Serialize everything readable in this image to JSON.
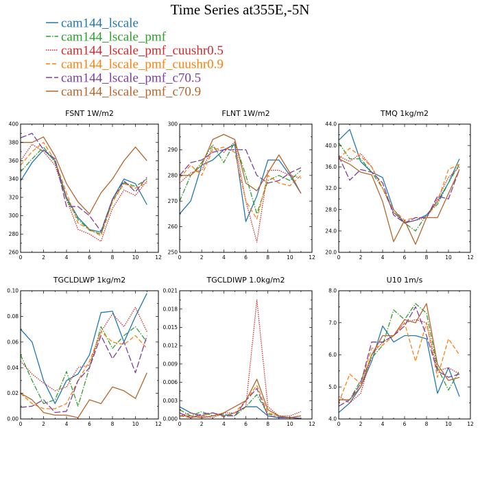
{
  "figure_title": "Time Series at355E,-5N",
  "legend": [
    {
      "label": "cam144_lscale",
      "color": "#1f77b4",
      "dash": "solid"
    },
    {
      "label": "cam144_lscale_pmf",
      "color": "#2ca02c",
      "dash": "dashdot"
    },
    {
      "label": "cam144_lscale_pmf_cuushr0.5",
      "color": "#d62728",
      "dash": "dot"
    },
    {
      "label": "cam144_lscale_pmf_cuushr0.9",
      "color": "#ff7f0e",
      "dash": "dash"
    },
    {
      "label": "cam144_lscale_pmf_c70.5",
      "color": "#7b3f9e",
      "dash": "longdash"
    },
    {
      "label": "cam144_lscale_pmf_c70.9",
      "color": "#b5652b",
      "dash": "solid"
    }
  ],
  "chart_data": [
    {
      "type": "line",
      "title": "FSNT   1W/m2",
      "x": [
        0,
        1,
        2,
        3,
        4,
        5,
        6,
        7,
        8,
        9,
        10,
        11
      ],
      "xlim": [
        0,
        12
      ],
      "xticks": [
        0,
        2,
        4,
        6,
        8,
        10,
        12
      ],
      "ylim": [
        260,
        400
      ],
      "yticks": [
        260,
        280,
        300,
        320,
        340,
        360,
        380,
        400
      ],
      "ytick_labels": [
        "260",
        "280",
        "300",
        "320",
        "340",
        "360",
        "380",
        "400"
      ],
      "series": [
        {
          "name": "cam144_lscale",
          "values": [
            338,
            358,
            372,
            360,
            320,
            298,
            285,
            282,
            318,
            340,
            335,
            312
          ]
        },
        {
          "name": "cam144_lscale_pmf",
          "values": [
            348,
            362,
            375,
            358,
            318,
            296,
            284,
            280,
            316,
            336,
            332,
            340
          ]
        },
        {
          "name": "cam144_lscale_pmf_cuushr0.5",
          "values": [
            360,
            378,
            370,
            355,
            318,
            285,
            280,
            272,
            308,
            328,
            322,
            338
          ]
        },
        {
          "name": "cam144_lscale_pmf_cuushr0.9",
          "values": [
            355,
            370,
            380,
            360,
            325,
            292,
            285,
            278,
            315,
            335,
            330,
            336
          ]
        },
        {
          "name": "cam144_lscale_pmf_c70.5",
          "values": [
            385,
            390,
            372,
            362,
            310,
            310,
            300,
            283,
            318,
            338,
            326,
            342
          ]
        },
        {
          "name": "cam144_lscale_pmf_c70.9",
          "values": [
            380,
            380,
            386,
            365,
            335,
            315,
            302,
            325,
            340,
            360,
            375,
            360
          ]
        }
      ]
    },
    {
      "type": "line",
      "title": "FLNT   1W/m2",
      "x": [
        0,
        1,
        2,
        3,
        4,
        5,
        6,
        7,
        8,
        9,
        10,
        11
      ],
      "xlim": [
        0,
        12
      ],
      "xticks": [
        0,
        2,
        4,
        6,
        8,
        10,
        12
      ],
      "ylim": [
        250,
        300
      ],
      "yticks": [
        250,
        260,
        270,
        280,
        290,
        300
      ],
      "ytick_labels": [
        "250",
        "260",
        "270",
        "280",
        "290",
        "300"
      ],
      "series": [
        {
          "name": "cam144_lscale",
          "values": [
            265,
            270,
            284,
            286,
            290,
            292,
            262,
            272,
            286,
            286,
            280,
            273
          ]
        },
        {
          "name": "cam144_lscale_pmf",
          "values": [
            270,
            280,
            285,
            292,
            285,
            293,
            280,
            265,
            278,
            280,
            278,
            282
          ]
        },
        {
          "name": "cam144_lscale_pmf_cuushr0.5",
          "values": [
            277,
            281,
            282,
            291,
            289,
            293,
            270,
            254,
            282,
            282,
            280,
            279
          ]
        },
        {
          "name": "cam144_lscale_pmf_cuushr0.9",
          "values": [
            279,
            284,
            280,
            290,
            291,
            289,
            270,
            263,
            280,
            277,
            276,
            280
          ]
        },
        {
          "name": "cam144_lscale_pmf_c70.5",
          "values": [
            280,
            285,
            286,
            289,
            290,
            290,
            290,
            280,
            277,
            278,
            281,
            283
          ]
        },
        {
          "name": "cam144_lscale_pmf_c70.9",
          "values": [
            280,
            280,
            284,
            294,
            296,
            294,
            277,
            274,
            281,
            288,
            281,
            273
          ]
        }
      ]
    },
    {
      "type": "line",
      "title": "TMQ   1kg/m2",
      "x": [
        0,
        1,
        2,
        3,
        4,
        5,
        6,
        7,
        8,
        9,
        10,
        11
      ],
      "xlim": [
        0,
        12
      ],
      "xticks": [
        0,
        2,
        4,
        6,
        8,
        10,
        12
      ],
      "ylim": [
        20,
        44
      ],
      "yticks": [
        20,
        24,
        28,
        32,
        36,
        40,
        44
      ],
      "ytick_labels": [
        "20.0",
        "24.0",
        "28.0",
        "32.0",
        "36.0",
        "40.0",
        "44.0"
      ],
      "series": [
        {
          "name": "cam144_lscale",
          "values": [
            41,
            43,
            37,
            35,
            34,
            28,
            25.5,
            26,
            27,
            29.5,
            33,
            37.5
          ]
        },
        {
          "name": "cam144_lscale_pmf",
          "values": [
            40.5,
            37.5,
            37.5,
            35,
            32,
            27.5,
            25.5,
            24,
            27,
            29,
            33,
            36.5
          ]
        },
        {
          "name": "cam144_lscale_pmf_cuushr0.5",
          "values": [
            38,
            37,
            38.5,
            36,
            32,
            27.5,
            25.5,
            26,
            26.5,
            30,
            34,
            36
          ]
        },
        {
          "name": "cam144_lscale_pmf_cuushr0.9",
          "values": [
            37.5,
            39.5,
            38,
            36,
            32,
            28,
            26,
            26.5,
            26.5,
            29.5,
            35.5,
            36.5
          ]
        },
        {
          "name": "cam144_lscale_pmf_c70.5",
          "values": [
            38,
            33.5,
            35.5,
            35,
            33,
            27,
            25.5,
            26.5,
            26.5,
            30.5,
            30,
            35.5
          ]
        },
        {
          "name": "cam144_lscale_pmf_c70.9",
          "values": [
            37.5,
            36.5,
            35,
            34.5,
            29.5,
            22,
            26,
            21.5,
            26.5,
            26.5,
            31,
            35.5
          ]
        }
      ]
    },
    {
      "type": "line",
      "title": "TGCLDLWP   1kg/m2",
      "x": [
        0,
        1,
        2,
        3,
        4,
        5,
        6,
        7,
        8,
        9,
        10,
        11
      ],
      "xlim": [
        0,
        12
      ],
      "xticks": [
        0,
        2,
        4,
        6,
        8,
        10,
        12
      ],
      "ylim": [
        0,
        0.1
      ],
      "yticks": [
        0,
        0.02,
        0.04,
        0.06,
        0.08,
        0.1
      ],
      "ytick_labels": [
        "0.00",
        "0.02",
        "0.04",
        "0.06",
        "0.08",
        "0.10"
      ],
      "series": [
        {
          "name": "cam144_lscale",
          "values": [
            0.07,
            0.06,
            0.03,
            0.012,
            0.03,
            0.035,
            0.05,
            0.083,
            0.084,
            0.06,
            0.08,
            0.098
          ]
        },
        {
          "name": "cam144_lscale_pmf",
          "values": [
            0.05,
            0.03,
            0.012,
            0.015,
            0.037,
            0.01,
            0.04,
            0.072,
            0.055,
            0.065,
            0.072,
            0.06
          ]
        },
        {
          "name": "cam144_lscale_pmf_cuushr0.5",
          "values": [
            0.045,
            0.035,
            0.028,
            0.022,
            0.025,
            0.04,
            0.042,
            0.068,
            0.082,
            0.072,
            0.087,
            0.068
          ]
        },
        {
          "name": "cam144_lscale_pmf_cuushr0.9",
          "values": [
            0.02,
            0.012,
            0.008,
            0.008,
            0.012,
            0.03,
            0.045,
            0.068,
            0.06,
            0.058,
            0.065,
            0.055
          ]
        },
        {
          "name": "cam144_lscale_pmf_c70.5",
          "values": [
            0.009,
            0.01,
            0.015,
            0.005,
            0.006,
            0.03,
            0.04,
            0.065,
            0.047,
            0.06,
            0.036,
            0.065
          ]
        },
        {
          "name": "cam144_lscale_pmf_c70.9",
          "values": [
            0.02,
            0.015,
            0.005,
            0.003,
            0.003,
            0.001,
            0.015,
            0.012,
            0.025,
            0.022,
            0.016,
            0.036
          ]
        }
      ]
    },
    {
      "type": "line",
      "title": "TGCLDIWP   1.0kg/m2",
      "x": [
        0,
        1,
        2,
        3,
        4,
        5,
        6,
        7,
        8,
        9,
        10,
        11
      ],
      "xlim": [
        0,
        12
      ],
      "xticks": [
        0,
        2,
        4,
        6,
        8,
        10,
        12
      ],
      "ylim": [
        0,
        0.021
      ],
      "yticks": [
        0,
        0.003,
        0.006,
        0.009,
        0.012,
        0.015,
        0.018,
        0.021
      ],
      "ytick_labels": [
        "0.000",
        "0.003",
        "0.006",
        "0.009",
        "0.012",
        "0.015",
        "0.018",
        "0.021"
      ],
      "series": [
        {
          "name": "cam144_lscale",
          "values": [
            0.002,
            0.001,
            0.0005,
            0.001,
            0.0005,
            0.001,
            0.002,
            0.002,
            0.0005,
            0.0002,
            0.0002,
            0.0001
          ]
        },
        {
          "name": "cam144_lscale_pmf",
          "values": [
            0.0015,
            0.0005,
            0.0012,
            0.0005,
            0.0008,
            0.0005,
            0.002,
            0.004,
            0.0008,
            0.0005,
            0.0002,
            0.0005
          ]
        },
        {
          "name": "cam144_lscale_pmf_cuushr0.5",
          "values": [
            0.0005,
            0.001,
            0.0005,
            0.0002,
            0.001,
            0.001,
            0.002,
            0.0195,
            0.002,
            0.0005,
            0.0005,
            0.0012
          ]
        },
        {
          "name": "cam144_lscale_pmf_cuushr0.9",
          "values": [
            0.0005,
            0.0002,
            0.0005,
            0.001,
            0.0003,
            0.001,
            0.003,
            0.0055,
            0.001,
            0.0005,
            0.0002,
            0.0005
          ]
        },
        {
          "name": "cam144_lscale_pmf_c70.5",
          "values": [
            0.001,
            0.0002,
            0.0008,
            0.001,
            0.0005,
            0.0005,
            0.003,
            0.005,
            0.0005,
            0.0003,
            0.0002,
            0.0001
          ]
        },
        {
          "name": "cam144_lscale_pmf_c70.9",
          "values": [
            0.0005,
            0.0005,
            0.0002,
            0.0005,
            0.001,
            0.002,
            0.003,
            0.0065,
            0.0015,
            0.0005,
            0.0002,
            0.0005
          ]
        }
      ]
    },
    {
      "type": "line",
      "title": "U10   1m/s",
      "x": [
        0,
        1,
        2,
        3,
        4,
        5,
        6,
        7,
        8,
        9,
        10,
        11
      ],
      "xlim": [
        0,
        12
      ],
      "xticks": [
        0,
        2,
        4,
        6,
        8,
        10,
        12
      ],
      "ylim": [
        4,
        8
      ],
      "yticks": [
        4,
        5,
        6,
        7,
        8
      ],
      "ytick_labels": [
        "4.0",
        "5.0",
        "6.0",
        "7.0",
        "8.0"
      ],
      "series": [
        {
          "name": "cam144_lscale",
          "values": [
            4.2,
            4.5,
            5.0,
            5.8,
            6.9,
            6.4,
            6.6,
            6.6,
            6.5,
            4.8,
            5.6,
            4.7
          ]
        },
        {
          "name": "cam144_lscale_pmf",
          "values": [
            4.6,
            4.6,
            5.2,
            5.9,
            6.3,
            7.4,
            7.1,
            7.6,
            7.3,
            5.6,
            4.9,
            5.5
          ]
        },
        {
          "name": "cam144_lscale_pmf_cuushr0.5",
          "values": [
            4.7,
            4.5,
            4.8,
            6.0,
            6.4,
            6.6,
            7.0,
            7.1,
            7.0,
            5.5,
            5.6,
            5.4
          ]
        },
        {
          "name": "cam144_lscale_pmf_cuushr0.9",
          "values": [
            4.5,
            5.4,
            5.1,
            6.2,
            6.3,
            6.6,
            7.0,
            5.8,
            7.0,
            5.3,
            6.5,
            6.0
          ]
        },
        {
          "name": "cam144_lscale_pmf_c70.5",
          "values": [
            4.4,
            4.6,
            5.1,
            6.4,
            6.4,
            6.6,
            6.9,
            7.5,
            6.6,
            5.5,
            5.3,
            5.4
          ]
        },
        {
          "name": "cam144_lscale_pmf_c70.9",
          "values": [
            4.6,
            4.6,
            5.0,
            6.0,
            6.6,
            6.6,
            7.1,
            7.0,
            7.6,
            5.7,
            5.2,
            5.3
          ]
        }
      ]
    }
  ]
}
